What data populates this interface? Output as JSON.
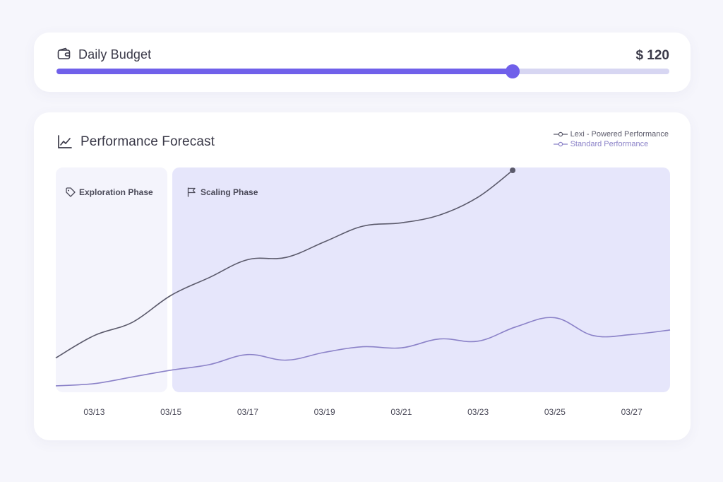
{
  "budget": {
    "title": "Daily Budget",
    "value_label": "$ 120",
    "slider_fraction": 0.744,
    "icon": "wallet-icon"
  },
  "forecast": {
    "title": "Performance Forecast",
    "icon": "line-chart-icon",
    "phases": [
      {
        "label": "Exploration Phase",
        "icon": "tag-icon"
      },
      {
        "label": "Scaling Phase",
        "icon": "flag-icon"
      }
    ],
    "legend": [
      {
        "label": "Lexi - Powered Performance",
        "color": "#5b5a6b"
      },
      {
        "label": "Standard Performance",
        "color": "#8b82c8"
      }
    ]
  },
  "colors": {
    "accent": "#7060ea",
    "track": "#d7d6f2",
    "scaling_phase_bg": "#e6e6fb",
    "exploration_phase_bg": "#f4f4fc"
  },
  "chart_data": {
    "type": "line",
    "x_tick_labels": [
      "03/13",
      "03/15",
      "03/17",
      "03/19",
      "03/21",
      "03/23",
      "03/25",
      "03/27"
    ],
    "xlim": [
      "03/12",
      "03/28"
    ],
    "ylim": [
      0,
      100
    ],
    "phases": [
      {
        "name": "Exploration Phase",
        "x_start": "03/12",
        "x_end": "03/15"
      },
      {
        "name": "Scaling Phase",
        "x_start": "03/15",
        "x_end": "03/28"
      }
    ],
    "series": [
      {
        "name": "Lexi - Powered Performance",
        "color": "#5b5a6b",
        "points": [
          [
            "03/12",
            16
          ],
          [
            "03/13",
            26
          ],
          [
            "03/14",
            32
          ],
          [
            "03/15",
            44
          ],
          [
            "03/16",
            52
          ],
          [
            "03/17",
            60
          ],
          [
            "03/18",
            61
          ],
          [
            "03/19",
            68
          ],
          [
            "03/20",
            75
          ],
          [
            "03/21",
            76.5
          ],
          [
            "03/22",
            80
          ],
          [
            "03/23",
            88
          ],
          [
            "03/23.9",
            100
          ]
        ],
        "end_marker": true
      },
      {
        "name": "Standard Performance",
        "color": "#8b82c8",
        "points": [
          [
            "03/12",
            3.5
          ],
          [
            "03/13",
            4.5
          ],
          [
            "03/14",
            7.5
          ],
          [
            "03/15",
            10.5
          ],
          [
            "03/16",
            13
          ],
          [
            "03/17",
            17.5
          ],
          [
            "03/18",
            15
          ],
          [
            "03/19",
            18.5
          ],
          [
            "03/20",
            21
          ],
          [
            "03/21",
            20.5
          ],
          [
            "03/22",
            24.5
          ],
          [
            "03/23",
            23.5
          ],
          [
            "03/24",
            30
          ],
          [
            "03/25",
            34
          ],
          [
            "03/26",
            26
          ],
          [
            "03/27",
            26.5
          ],
          [
            "03/28",
            28.5
          ]
        ]
      }
    ]
  }
}
